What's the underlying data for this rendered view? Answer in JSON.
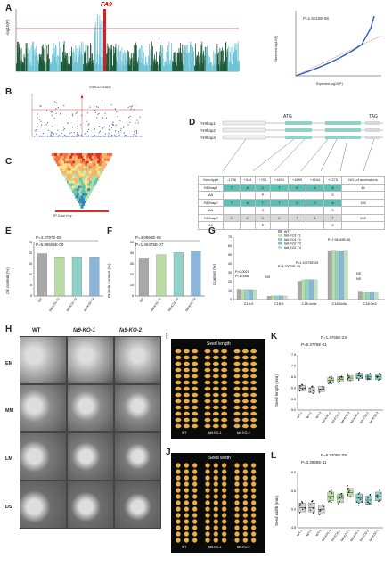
{
  "panels": {
    "A": {
      "letter": "A",
      "gene": "FA9",
      "ylabel": "-log10(P)",
      "qq_pvalue": "P=1.5018E-08",
      "qq_xlabel": "Expected-log10(P)",
      "qq_ylabel": "Observed-log10(P)"
    },
    "B": {
      "letter": "B",
      "snp": "Chr5-47431837"
    },
    "C": {
      "letter": "C",
      "legend": "R² Color Key"
    },
    "D": {
      "letter": "D",
      "atg": "ATG",
      "tag": "TAG",
      "haps": [
        "FA9hap1",
        "FA9hap2",
        "FA9hap3"
      ],
      "header": [
        "Genotype",
        "-1706",
        "+344",
        "+701",
        "+1891",
        "+1895",
        "+1944",
        "+2270",
        "NO. of accessions"
      ],
      "rows": [
        [
          "FA9hap1",
          "T",
          "A",
          "C",
          "T",
          "G",
          "A",
          "A",
          "44"
        ],
        [
          "AA",
          "",
          "",
          "P",
          "",
          "",
          "",
          "S",
          ""
        ],
        [
          "FA9hap2",
          "T",
          "A",
          "T",
          "T",
          "G",
          "G",
          "A",
          "190"
        ],
        [
          "AA",
          "",
          "",
          "S",
          "",
          "",
          "",
          "S",
          ""
        ],
        [
          "FA9hap3",
          "C",
          "C",
          "C",
          "C",
          "T",
          "A",
          "T",
          "285"
        ],
        [
          "AA",
          "",
          "",
          "P",
          "",
          "",
          "",
          "S",
          ""
        ]
      ]
    },
    "E": {
      "letter": "E",
      "ylabel": "Oil content (%)",
      "p1": "P=4.3797E-08",
      "p2": "P=6.98505E-09",
      "categories": [
        "WT",
        "fa9-KO1-T1",
        "fa9-KO1-T2",
        "fa9-KO2-T4"
      ]
    },
    "F": {
      "letter": "F",
      "ylabel": "Protein content (%)",
      "p1": "P=4.0898E-06",
      "p2": "P=1.45475E-07",
      "categories": [
        "WT",
        "fa9-KO1-T1",
        "fa9-KO1-T2",
        "fa9-KO2-T4"
      ]
    },
    "G": {
      "letter": "G",
      "ylabel": "Content (%)",
      "legend": [
        "WT",
        "fa9-KO1-T1",
        "fa9-KO1-T2",
        "fa9-KO2-T3",
        "fa9-KO2-T4"
      ],
      "categories": [
        "C16:0",
        "C18:0",
        "C18:1n9c",
        "C18:2n6c",
        "C18:3n3"
      ],
      "annotations": [
        "P=0.0021",
        "P=1.0958",
        "NS",
        "P=4.75025E-05",
        "P=1.19275E-05",
        "P=7.94249E-06",
        "NS",
        "NS"
      ]
    },
    "H": {
      "letter": "H",
      "cols": [
        "WT",
        "fa9-KO-1",
        "fa9-KO-2"
      ],
      "rows": [
        "EM",
        "MM",
        "LM",
        "DS"
      ]
    },
    "I": {
      "letter": "I",
      "title": "Seed length",
      "labels": [
        "WT",
        "fa9-KO-1",
        "fa9-KO-2"
      ]
    },
    "J": {
      "letter": "J",
      "title": "Seed width",
      "labels": [
        "WT",
        "fa9-KO-1",
        "fa9-KO-2"
      ]
    },
    "K": {
      "letter": "K",
      "ylabel": "Seed length (mm)",
      "p1": "P=1.4765E-24",
      "p2": "P=6.3776E-21",
      "categories": [
        "WT-1",
        "WT-2",
        "WT-3",
        "fa9-KO1-1",
        "fa9-KO1-2",
        "fa9-KO1-3",
        "fa9-KO2-1",
        "fa9-KO2-2",
        "fa9-KO2-3"
      ]
    },
    "L": {
      "letter": "L",
      "ylabel": "Seed width (mm)",
      "p1": "P=8.7209E-09",
      "p2": "P=3.3938E-11",
      "categories": [
        "WT-1",
        "WT-2",
        "WT-3",
        "fa9-KO1-1",
        "fa9-KO1-2",
        "fa9-KO1-3",
        "fa9-KO2-1",
        "fa9-KO2-2",
        "fa9-KO2-3"
      ]
    }
  },
  "chart_data": [
    {
      "type": "bar",
      "panel": "E",
      "categories": [
        "WT",
        "fa9-KO1-T1",
        "fa9-KO1-T2",
        "fa9-KO2-T4"
      ],
      "values": [
        19.8,
        18.2,
        18.3,
        18.2
      ],
      "ylabel": "Oil content (%)",
      "ylim": [
        0,
        25
      ]
    },
    {
      "type": "bar",
      "panel": "F",
      "categories": [
        "WT",
        "fa9-KO1-T1",
        "fa9-KO1-T2",
        "fa9-KO2-T4"
      ],
      "values": [
        35.5,
        38.5,
        40.5,
        42.0
      ],
      "ylabel": "Protein content (%)",
      "ylim": [
        0,
        50
      ]
    },
    {
      "type": "bar",
      "panel": "G",
      "categories": [
        "C16:0",
        "C18:0",
        "C18:1n9c",
        "C18:2n6c",
        "C18:3n3"
      ],
      "series": [
        {
          "name": "WT",
          "values": [
            11.5,
            3.8,
            20.5,
            55.0,
            9.5
          ]
        },
        {
          "name": "fa9-KO1-T1",
          "values": [
            11.0,
            4.2,
            22.0,
            55.5,
            8.0
          ]
        },
        {
          "name": "fa9-KO1-T2",
          "values": [
            11.2,
            4.1,
            22.5,
            55.0,
            8.5
          ]
        },
        {
          "name": "fa9-KO2-T3",
          "values": [
            11.1,
            4.3,
            22.3,
            54.8,
            8.3
          ]
        },
        {
          "name": "fa9-KO2-T4",
          "values": [
            11.0,
            4.0,
            22.1,
            55.2,
            8.2
          ]
        }
      ],
      "ylabel": "Content (%)",
      "ylim": [
        0,
        70
      ]
    },
    {
      "type": "scatter",
      "panel": "K",
      "categories": [
        "WT-1",
        "WT-2",
        "WT-3",
        "fa9-KO1-1",
        "fa9-KO1-2",
        "fa9-KO1-3",
        "fa9-KO2-1",
        "fa9-KO2-2",
        "fa9-KO2-3"
      ],
      "values": [
        6.0,
        5.9,
        5.95,
        6.35,
        6.4,
        6.45,
        6.55,
        6.5,
        6.5
      ],
      "ylabel": "Seed length (mm)",
      "ylim": [
        5.0,
        7.5
      ]
    },
    {
      "type": "scatter",
      "panel": "L",
      "categories": [
        "WT-1",
        "WT-2",
        "WT-3",
        "fa9-KO1-1",
        "fa9-KO1-2",
        "fa9-KO1-3",
        "fa9-KO2-1",
        "fa9-KO2-2",
        "fa9-KO2-3"
      ],
      "values": [
        5.05,
        5.05,
        5.0,
        5.35,
        5.3,
        5.45,
        5.3,
        5.25,
        5.35
      ],
      "ylabel": "Seed width (mm)",
      "ylim": [
        4.5,
        6.0
      ]
    }
  ],
  "colors": {
    "manhattan_dark": "#1c5a3a",
    "manhattan_light": "#6ec3d6",
    "threshold": "#e0403c",
    "peak": "#d62020",
    "bar_wt": "#a8a8a8",
    "bar_ko1": "#b8dca4",
    "bar_ko2": "#8fd3c8",
    "bar_ko3": "#8ab6dc",
    "bar_ko4": "#bde0c0"
  }
}
